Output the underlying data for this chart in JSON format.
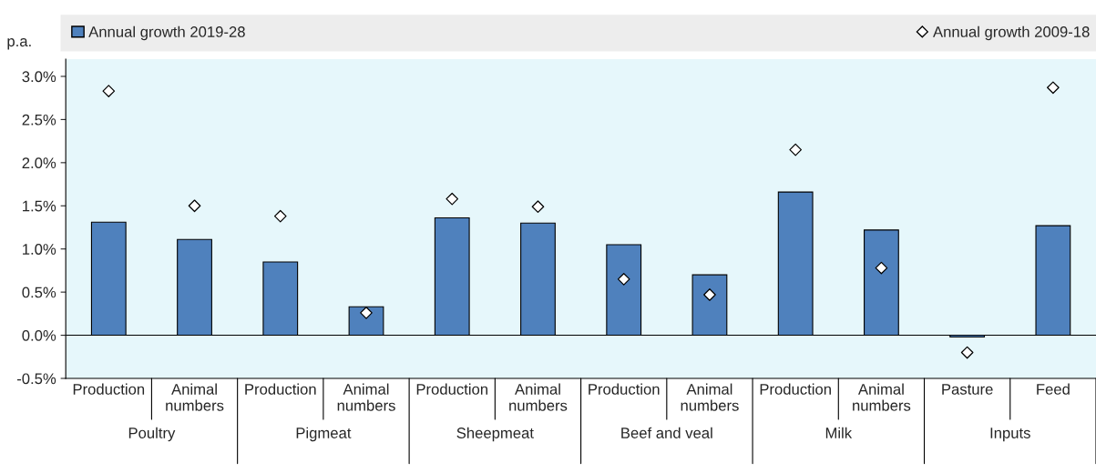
{
  "chart_data": {
    "type": "bar",
    "ylabel": "p.a.",
    "categories": [
      "Production",
      "Animal\nnumbers",
      "Production",
      "Animal\nnumbers",
      "Production",
      "Animal\nnumbers",
      "Production",
      "Animal\nnumbers",
      "Production",
      "Animal\nnumbers",
      "Pasture",
      "Feed"
    ],
    "series": [
      {
        "name": "Annual growth 2019-28",
        "type": "bar",
        "color": "#4f81bd",
        "values": [
          1.31,
          1.11,
          0.85,
          0.33,
          1.36,
          1.3,
          1.05,
          0.7,
          1.66,
          1.22,
          -0.02,
          1.27
        ]
      },
      {
        "name": "Annual growth 2009-18",
        "type": "scatter",
        "marker": "diamond",
        "color": "#000000",
        "values": [
          2.83,
          1.5,
          1.38,
          0.26,
          1.58,
          1.49,
          0.65,
          0.47,
          2.15,
          0.78,
          -0.2,
          2.87
        ]
      }
    ],
    "annotations": [
      "Poultry",
      "Pigmeat",
      "Sheepmeat",
      "Beef and veal",
      "Milk",
      "Inputs"
    ],
    "ylim": [
      -0.5,
      3.2
    ],
    "yticks": [
      {
        "value": -0.5,
        "label": "-0.5%"
      },
      {
        "value": 0,
        "label": "0.0%"
      },
      {
        "value": 0.5,
        "label": "0.5%"
      },
      {
        "value": 1,
        "label": "1.0%"
      },
      {
        "value": 1.5,
        "label": "1.5%"
      },
      {
        "value": 2,
        "label": "2.0%"
      },
      {
        "value": 2.5,
        "label": "2.5%"
      },
      {
        "value": 3,
        "label": "3.0%"
      }
    ],
    "ref_lines": [
      {
        "axis": "y",
        "value": 0,
        "color": "#000000",
        "line_style": "solid"
      }
    ],
    "grid": false,
    "legend": "top"
  }
}
